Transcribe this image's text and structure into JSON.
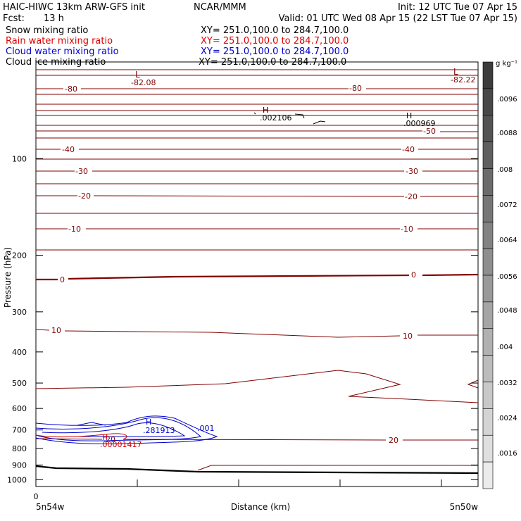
{
  "header": {
    "title_left": "HAIC-HIWC 13km ARW-GFS init",
    "org": "NCAR/MMM",
    "init": "Init: 12 UTC Tue 07 Apr 15",
    "fcst_label": "Fcst:",
    "fcst_value": "13 h",
    "valid": "Valid: 01 UTC Wed 08 Apr 15 (22 LST Tue 07 Apr 15)"
  },
  "legend": [
    {
      "label": "Snow mixing ratio",
      "xy": "XY= 251.0,100.0 to 284.7,100.0",
      "color": "#000000"
    },
    {
      "label": "Rain water mixing ratio",
      "xy": "XY= 251.0,100.0 to 284.7,100.0",
      "color": "#dd0000"
    },
    {
      "label": "Cloud water mixing ratio",
      "xy": "XY= 251.0,100.0 to 284.7,100.0",
      "color": "#0000cc"
    },
    {
      "label": "Cloud ice mixing ratio",
      "xy": "XY= 251.0,100.0 to 284.7,100.0",
      "color": "#000000"
    }
  ],
  "chart_data": {
    "type": "contour-cross-section",
    "ylabel": "Pressure (hPa)",
    "xlabel": "Distance (km)",
    "x_start_label": "5n54w",
    "x_end_label": "5n50w",
    "x_origin_tick": "0",
    "yticks": [
      "100",
      "200",
      "300",
      "400",
      "500",
      "600",
      "700",
      "800",
      "900",
      "1000"
    ],
    "ylim": [
      1050,
      50
    ],
    "y_scale": "log",
    "temperature_contours": {
      "color": "#800000",
      "levels": [
        -80,
        -70,
        -60,
        -50,
        -40,
        -30,
        -20,
        -10,
        0,
        10,
        20
      ],
      "labels": [
        {
          "text": "-80"
        },
        {
          "text": "-82.08"
        },
        {
          "text": "-80"
        },
        {
          "text": "-82.22"
        },
        {
          "text": "-50"
        },
        {
          "text": "-40"
        },
        {
          "text": "-40"
        },
        {
          "text": "-30"
        },
        {
          "text": "-30"
        },
        {
          "text": "-20"
        },
        {
          "text": "-20"
        },
        {
          "text": "-10"
        },
        {
          "text": "-10"
        },
        {
          "text": "0"
        },
        {
          "text": "0"
        },
        {
          "text": "10"
        },
        {
          "text": "10"
        },
        {
          "text": "20"
        },
        {
          "text": "20"
        }
      ],
      "extrema": [
        {
          "type": "L",
          "value": "-82.08"
        },
        {
          "type": "L",
          "value": "-82.22"
        }
      ]
    },
    "cloud_water_contours": {
      "color": "#0000cc",
      "labels": [
        {
          "text": "H"
        },
        {
          "text": ".281913"
        },
        {
          "text": ".001"
        }
      ]
    },
    "rain_water_contours": {
      "color": "#cc0000",
      "labels": [
        {
          "text": "H"
        },
        {
          "text": ".00001417"
        }
      ]
    },
    "ice_contours": {
      "color": "#000000",
      "labels": [
        {
          "text": "H"
        },
        {
          "text": ".002106"
        },
        {
          "text": "H"
        },
        {
          "text": ".000969"
        }
      ]
    },
    "colorbar": {
      "unit": "g kg⁻¹",
      "ticks": [
        ".0096",
        ".0088",
        ".008",
        ".0072",
        ".0064",
        ".0056",
        ".0048",
        ".004",
        ".0032",
        ".0024",
        ".0016"
      ],
      "bins": 16
    }
  }
}
